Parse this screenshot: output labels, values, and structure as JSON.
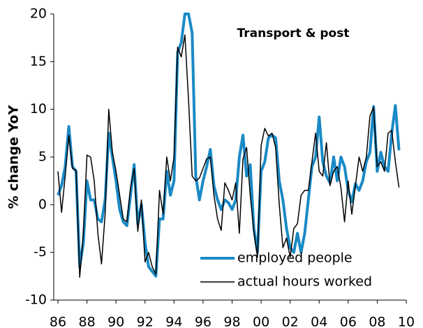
{
  "chart_data": {
    "type": "line",
    "title": "Transport & post",
    "y_label": "% change YoY",
    "x": [
      1986,
      1986.25,
      1986.5,
      1986.75,
      1987,
      1987.25,
      1987.5,
      1987.75,
      1988,
      1988.25,
      1988.5,
      1988.75,
      1989,
      1989.25,
      1989.5,
      1989.75,
      1990,
      1990.25,
      1990.5,
      1990.75,
      1991,
      1991.25,
      1991.5,
      1991.75,
      1992,
      1992.25,
      1992.5,
      1992.75,
      1993,
      1993.25,
      1993.5,
      1993.75,
      1994,
      1994.25,
      1994.5,
      1994.75,
      1995,
      1995.25,
      1995.5,
      1995.75,
      1996,
      1996.25,
      1996.5,
      1996.75,
      1997,
      1997.25,
      1997.5,
      1997.75,
      1998,
      1998.25,
      1998.5,
      1998.75,
      1999,
      1999.25,
      1999.5,
      1999.75,
      2000,
      2000.25,
      2000.5,
      2000.75,
      2001,
      2001.25,
      2001.5,
      2001.75,
      2002,
      2002.25,
      2002.5,
      2002.75,
      2003,
      2003.25,
      2003.5,
      2003.75,
      2004,
      2004.25,
      2004.5,
      2004.75,
      2005,
      2005.25,
      2005.5,
      2005.75,
      2006,
      2006.25,
      2006.5,
      2006.75,
      2007,
      2007.25,
      2007.5,
      2007.75,
      2008,
      2008.25,
      2008.5,
      2008.75,
      2009,
      2009.25,
      2009.5
    ],
    "series": [
      {
        "name": "employed people",
        "color": "#1a8ac6",
        "values": [
          1,
          2,
          4,
          8.2,
          4,
          3.5,
          -6.5,
          -4,
          2.5,
          0.5,
          0.5,
          -1.5,
          -1.8,
          0.5,
          7.5,
          5,
          2.5,
          -0.5,
          -1.8,
          -2.2,
          1,
          4.2,
          -2,
          0,
          -4,
          -6.5,
          -7,
          -7.5,
          -1.5,
          -1.5,
          3.5,
          1,
          2.5,
          16,
          17,
          20,
          20,
          18,
          3,
          0.5,
          2.5,
          4,
          5.8,
          2,
          0.5,
          -0.5,
          0.5,
          0.2,
          -0.5,
          0.5,
          5,
          7.3,
          3,
          4.2,
          -2.5,
          -5,
          3.5,
          4.5,
          7,
          7.3,
          7,
          2.5,
          0.5,
          -2.5,
          -4.5,
          -5,
          -3,
          -5,
          -3,
          0.5,
          4,
          5,
          9.2,
          4.5,
          3,
          2.3,
          5,
          2.5,
          5,
          4,
          1.5,
          0.3,
          2.2,
          1.5,
          2.5,
          4.5,
          5.5,
          10.3,
          3.5,
          5.5,
          4,
          3.5,
          7.5,
          10.4,
          5.7
        ]
      },
      {
        "name": "actual hours worked",
        "color": "#000000",
        "values": [
          3.5,
          -0.8,
          3,
          7.3,
          3.8,
          3.6,
          -7.6,
          -3,
          5.2,
          5,
          2.5,
          -3,
          -6.2,
          -1,
          10,
          5.5,
          3.5,
          1,
          -1.5,
          -1.8,
          1.8,
          3.8,
          -2.8,
          0.5,
          -6,
          -5,
          -6.5,
          -7.3,
          1.5,
          -1,
          5,
          2.5,
          5,
          16.5,
          15.5,
          17.8,
          11,
          3,
          2.5,
          2.8,
          3.8,
          4.8,
          5,
          1,
          -1.5,
          -2.7,
          2.3,
          1.5,
          0.5,
          2.3,
          -3,
          4.8,
          6,
          1,
          -2.8,
          -5.5,
          6.2,
          8,
          7.2,
          7.5,
          6,
          0,
          -4.5,
          -3.5,
          -5.5,
          -2.5,
          -2,
          1,
          1.5,
          1.5,
          4.5,
          7.5,
          3.5,
          3,
          6.5,
          2,
          3.5,
          4,
          1.8,
          -1.8,
          2.5,
          -1,
          2,
          5,
          3.5,
          5,
          9.3,
          10.2,
          4,
          4.5,
          3.5,
          7.5,
          7.8,
          4.5,
          1.8
        ]
      }
    ],
    "xlim": [
      1986,
      2010
    ],
    "xticks": [
      {
        "value": 1986,
        "label": "86"
      },
      {
        "value": 1988,
        "label": "88"
      },
      {
        "value": 1990,
        "label": "90"
      },
      {
        "value": 1992,
        "label": "92"
      },
      {
        "value": 1994,
        "label": "94"
      },
      {
        "value": 1996,
        "label": "96"
      },
      {
        "value": 1998,
        "label": "98"
      },
      {
        "value": 2000,
        "label": "00"
      },
      {
        "value": 2002,
        "label": "02"
      },
      {
        "value": 2004,
        "label": "04"
      },
      {
        "value": 2006,
        "label": "06"
      },
      {
        "value": 2008,
        "label": "08"
      },
      {
        "value": 2010,
        "label": "10"
      }
    ],
    "ylim": [
      -10,
      20
    ],
    "yticks": [
      -10,
      -5,
      0,
      5,
      10,
      15,
      20
    ]
  }
}
